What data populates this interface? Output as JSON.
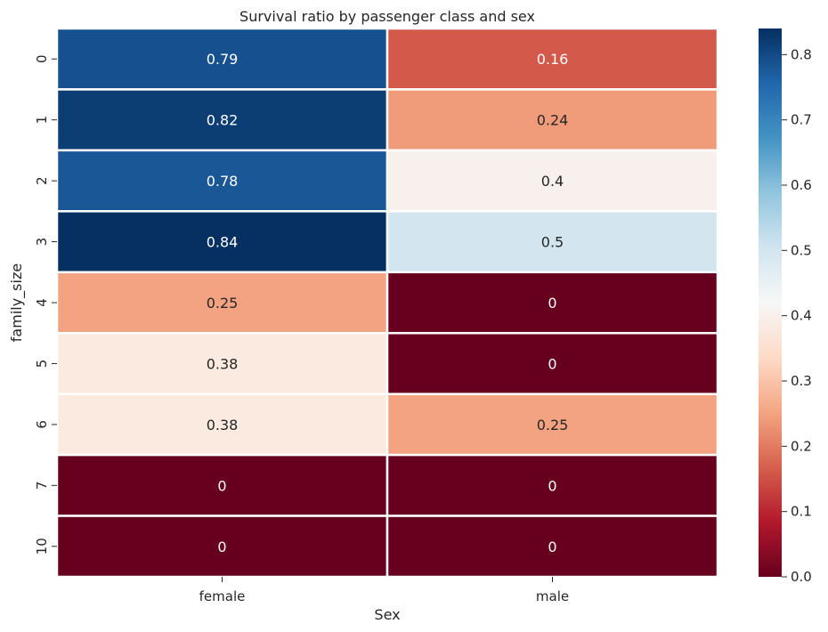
{
  "chart_data": {
    "type": "heatmap",
    "title": "Survival ratio by passenger class and sex",
    "xlabel": "Sex",
    "ylabel": "family_size",
    "x_categories": [
      "female",
      "male"
    ],
    "y_categories": [
      "0",
      "1",
      "2",
      "3",
      "4",
      "5",
      "6",
      "7",
      "10"
    ],
    "values": [
      [
        0.79,
        0.16
      ],
      [
        0.82,
        0.24
      ],
      [
        0.78,
        0.4
      ],
      [
        0.84,
        0.5
      ],
      [
        0.25,
        0
      ],
      [
        0.38,
        0
      ],
      [
        0.38,
        0.25
      ],
      [
        0,
        0
      ],
      [
        0,
        0
      ]
    ],
    "annotations": [
      [
        "0.79",
        "0.16"
      ],
      [
        "0.82",
        "0.24"
      ],
      [
        "0.78",
        "0.4"
      ],
      [
        "0.84",
        "0.5"
      ],
      [
        "0.25",
        "0"
      ],
      [
        "0.38",
        "0"
      ],
      [
        "0.38",
        "0.25"
      ],
      [
        "0",
        "0"
      ],
      [
        "0",
        "0"
      ]
    ],
    "colormap": "RdBu",
    "vmin": 0.0,
    "vmax": 0.84,
    "colorbar_ticks": [
      "0.0",
      "0.1",
      "0.2",
      "0.3",
      "0.4",
      "0.5",
      "0.6",
      "0.7",
      "0.8"
    ],
    "colorbar_tick_values": [
      0.0,
      0.1,
      0.2,
      0.3,
      0.4,
      0.5,
      0.6,
      0.7,
      0.8
    ],
    "grid_line_color": "#ffffff"
  }
}
